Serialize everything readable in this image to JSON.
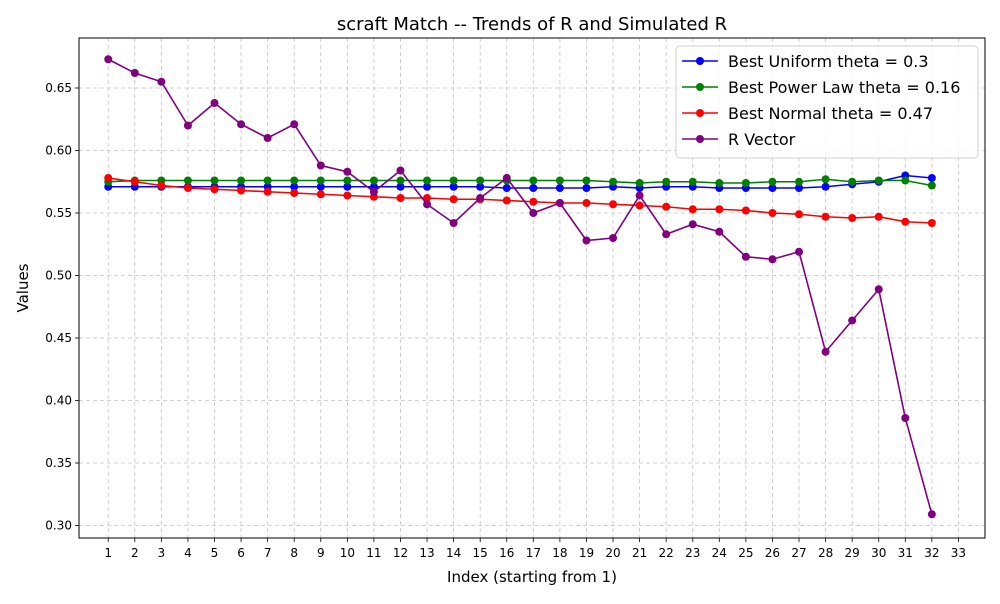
{
  "chart_data": {
    "type": "line",
    "title": "scraft Match -- Trends of R and Simulated R",
    "xlabel": "Index (starting from 1)",
    "ylabel": "Values",
    "x": [
      1,
      2,
      3,
      4,
      5,
      6,
      7,
      8,
      9,
      10,
      11,
      12,
      13,
      14,
      15,
      16,
      17,
      18,
      19,
      20,
      21,
      22,
      23,
      24,
      25,
      26,
      27,
      28,
      29,
      30,
      31,
      32
    ],
    "x_ticks": [
      1,
      2,
      3,
      4,
      5,
      6,
      7,
      8,
      9,
      10,
      11,
      12,
      13,
      14,
      15,
      16,
      17,
      18,
      19,
      20,
      21,
      22,
      23,
      24,
      25,
      26,
      27,
      28,
      29,
      30,
      31,
      32,
      33
    ],
    "xlim": [
      -0.1,
      34
    ],
    "ylim": [
      0.29,
      0.69
    ],
    "y_ticks": [
      0.3,
      0.35,
      0.4,
      0.45,
      0.5,
      0.55,
      0.6,
      0.65
    ],
    "grid": true,
    "legend_position": "top-right",
    "series": [
      {
        "name": "Best Uniform theta = 0.3",
        "color": "#0000ff",
        "values": [
          0.571,
          0.571,
          0.571,
          0.571,
          0.571,
          0.571,
          0.571,
          0.571,
          0.571,
          0.571,
          0.571,
          0.571,
          0.571,
          0.571,
          0.571,
          0.57,
          0.57,
          0.57,
          0.57,
          0.571,
          0.57,
          0.571,
          0.571,
          0.57,
          0.57,
          0.57,
          0.57,
          0.571,
          0.573,
          0.575,
          0.58,
          0.578
        ]
      },
      {
        "name": "Best Power Law theta = 0.16",
        "color": "#008000",
        "values": [
          0.575,
          0.576,
          0.576,
          0.576,
          0.576,
          0.576,
          0.576,
          0.576,
          0.576,
          0.576,
          0.576,
          0.576,
          0.576,
          0.576,
          0.576,
          0.576,
          0.576,
          0.576,
          0.576,
          0.575,
          0.574,
          0.575,
          0.575,
          0.574,
          0.574,
          0.575,
          0.575,
          0.577,
          0.575,
          0.576,
          0.576,
          0.572
        ]
      },
      {
        "name": "Best Normal theta = 0.47",
        "color": "#ff0000",
        "values": [
          0.578,
          0.575,
          0.572,
          0.57,
          0.569,
          0.568,
          0.567,
          0.566,
          0.565,
          0.564,
          0.563,
          0.562,
          0.562,
          0.561,
          0.561,
          0.56,
          0.559,
          0.558,
          0.558,
          0.557,
          0.556,
          0.555,
          0.553,
          0.553,
          0.552,
          0.55,
          0.549,
          0.547,
          0.546,
          0.547,
          0.543,
          0.542
        ]
      },
      {
        "name": "R Vector",
        "color": "#800080",
        "values": [
          0.673,
          0.662,
          0.655,
          0.62,
          0.638,
          0.621,
          0.61,
          0.621,
          0.588,
          0.583,
          0.567,
          0.584,
          0.557,
          0.542,
          0.562,
          0.578,
          0.55,
          0.558,
          0.528,
          0.53,
          0.564,
          0.533,
          0.541,
          0.535,
          0.515,
          0.513,
          0.519,
          0.439,
          0.464,
          0.489,
          0.386,
          0.309
        ]
      }
    ]
  }
}
